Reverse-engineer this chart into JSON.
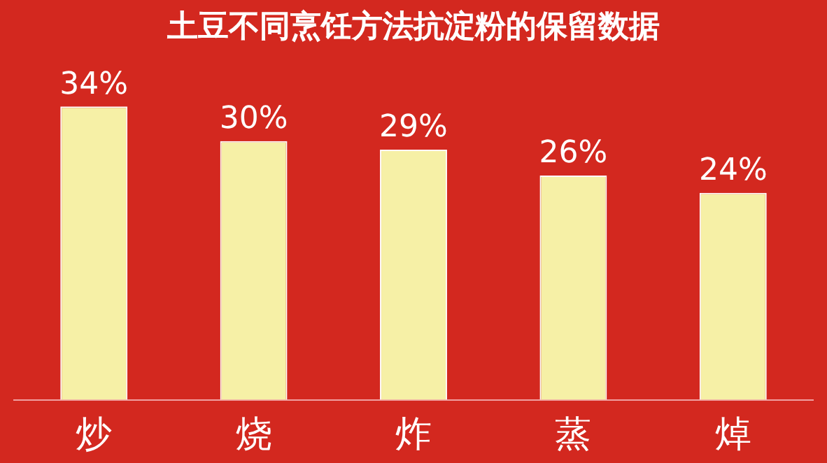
{
  "chart_data": {
    "type": "bar",
    "title": "土豆不同烹饪方法抗淀粉的保留数据",
    "categories": [
      "炒",
      "烧",
      "炸",
      "蒸",
      "焯"
    ],
    "values": [
      34,
      30,
      29,
      26,
      24
    ],
    "value_labels": [
      "34%",
      "30%",
      "29%",
      "26%",
      "24%"
    ],
    "color": "#f6f0a6",
    "grid": false,
    "tick_labels": "x"
  }
}
